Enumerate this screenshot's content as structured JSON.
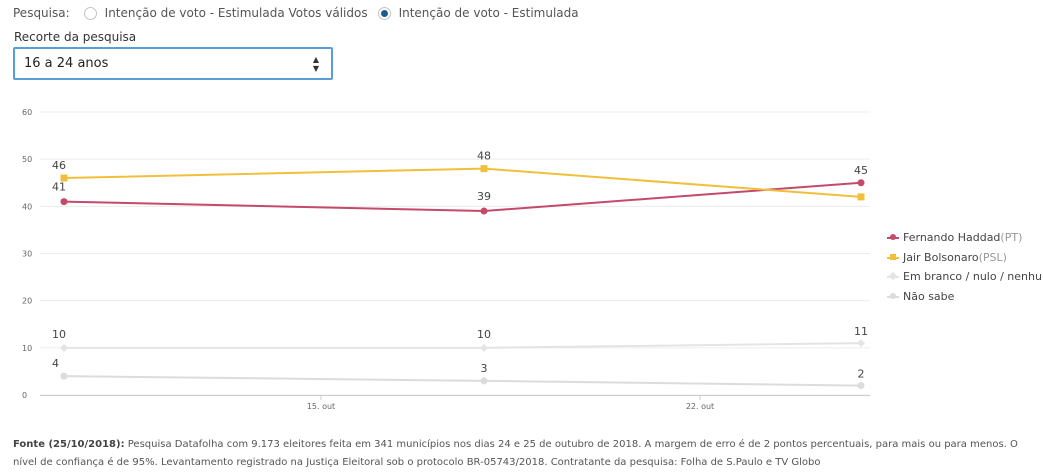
{
  "filter": {
    "label": "Pesquisa:",
    "options": [
      {
        "label": "Intenção de voto - Estimulada Votos válidos",
        "selected": false
      },
      {
        "label": "Intenção de voto - Estimulada",
        "selected": true
      }
    ]
  },
  "recorte": {
    "label": "Recorte da pesquisa",
    "value": "16 a 24 anos"
  },
  "chart_data": {
    "type": "line",
    "title": "",
    "xlabel": "",
    "ylabel": "",
    "ylim": [
      0,
      60
    ],
    "y_ticks": [
      "0",
      "10",
      "20",
      "30",
      "40",
      "50",
      "60"
    ],
    "x_ticks": [
      "15. out",
      "22. out"
    ],
    "x": [
      "10. out",
      "18. out",
      "25. out"
    ],
    "grid": true,
    "legend_position": "right",
    "series": [
      {
        "name": "Fernando Haddad",
        "party": "(PT)",
        "color": "#c44a6a",
        "marker": "circle",
        "values": [
          41,
          39,
          45
        ],
        "labels": [
          "41",
          "39",
          "45"
        ]
      },
      {
        "name": "Jair Bolsonaro",
        "party": "(PSL)",
        "color": "#f0c03c",
        "marker": "square",
        "values": [
          46,
          48,
          42
        ],
        "labels": [
          "46",
          "48",
          ""
        ]
      },
      {
        "name": "Em branco / nulo / nenhum",
        "party": "",
        "color": "#e4e4e4",
        "marker": "diamond",
        "values": [
          10,
          10,
          11
        ],
        "labels": [
          "10",
          "10",
          "11"
        ]
      },
      {
        "name": "Não sabe",
        "party": "",
        "color": "#dcdcdc",
        "marker": "circle",
        "values": [
          4,
          3,
          2
        ],
        "labels": [
          "4",
          "3",
          "2"
        ]
      }
    ]
  },
  "footer": {
    "fonte_label": "Fonte (25/10/2018):",
    "text": " Pesquisa Datafolha com 9.173 eleitores feita em 341 municípios nos dias 24 e 25 de outubro de 2018. A margem de erro é de 2 pontos percentuais, para mais ou para menos. O nível de confiança é de 95%. Levantamento registrado na Justiça Eleitoral sob o protocolo BR-05743/2018. Contratante da pesquisa: Folha de S.Paulo e TV Globo"
  }
}
